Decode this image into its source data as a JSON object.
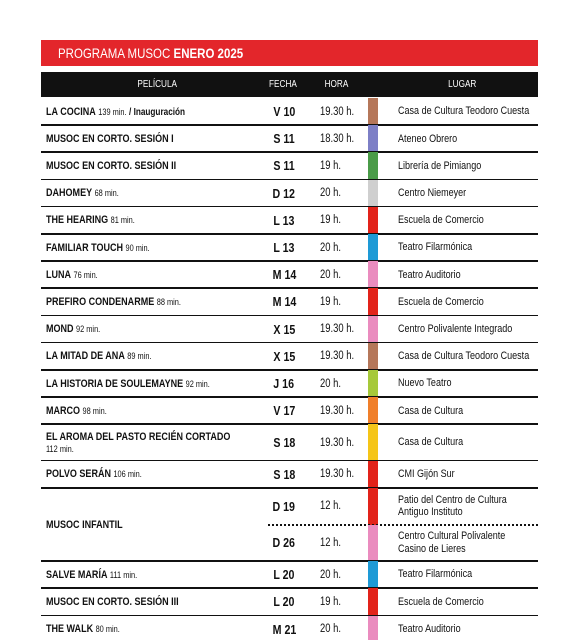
{
  "header": {
    "title": [
      "PROGRAMA MUSOC",
      "ENERO 2025"
    ]
  },
  "table": {
    "columns": [
      "PELÍCULA",
      "FECHA",
      "HORA",
      "LUGAR"
    ],
    "rows": [
      {
        "film": "LA COCINA",
        "duration": "139 min.",
        "note": "/ Inauguración",
        "sessions": [
          {
            "date": "V 10",
            "time": "19.30 h.",
            "color": "#b5775a",
            "place": [
              "Casa de Cultura Teodoro Cuesta"
            ]
          }
        ]
      },
      {
        "film": "MUSOC EN CORTO. SESIÓN I",
        "sessions": [
          {
            "date": "S 11",
            "time": "18.30 h.",
            "color": "#7d7fc6",
            "place": [
              "Ateneo Obrero"
            ]
          }
        ]
      },
      {
        "film": "MUSOC EN CORTO. SESIÓN II",
        "sessions": [
          {
            "date": "S 11",
            "time": "19 h.",
            "color": "#4a9b48",
            "place": [
              "Librería de Pimiango"
            ]
          }
        ]
      },
      {
        "film": "DAHOMEY",
        "duration": "68 min.",
        "sessions": [
          {
            "date": "D 12",
            "time": "20 h.",
            "color": "#cfcfcf",
            "place": [
              "Centro Niemeyer"
            ]
          }
        ]
      },
      {
        "film": "THE HEARING",
        "duration": "81 min.",
        "sessions": [
          {
            "date": "L 13",
            "time": "19 h.",
            "color": "#e2231a",
            "place": [
              "Escuela de Comercio"
            ]
          }
        ]
      },
      {
        "film": "FAMILIAR TOUCH",
        "duration": "90 min.",
        "sessions": [
          {
            "date": "L 13",
            "time": "20 h.",
            "color": "#1e9ad6",
            "place": [
              "Teatro Filarmónica"
            ]
          }
        ]
      },
      {
        "film": "LUNA",
        "duration": "76 min.",
        "sessions": [
          {
            "date": "M 14",
            "time": "20 h.",
            "color": "#ea8cbf",
            "place": [
              "Teatro Auditorio"
            ]
          }
        ]
      },
      {
        "film": "PREFIRO CONDENARME",
        "duration": "88 min.",
        "sessions": [
          {
            "date": "M 14",
            "time": "19 h.",
            "color": "#e2231a",
            "place": [
              "Escuela de Comercio"
            ]
          }
        ]
      },
      {
        "film": "MOND",
        "duration": "92 min.",
        "sessions": [
          {
            "date": "X 15",
            "time": "19.30 h.",
            "color": "#ea8cbf",
            "place": [
              "Centro Polivalente Integrado"
            ]
          }
        ]
      },
      {
        "film": "LA MITAD DE ANA",
        "duration": "89 min.",
        "sessions": [
          {
            "date": "X 15",
            "time": "19.30 h.",
            "color": "#b5775a",
            "place": [
              "Casa de Cultura Teodoro Cuesta"
            ]
          }
        ]
      },
      {
        "film": "LA HISTORIA DE SOULEMAYNE",
        "duration": "92 min.",
        "sessions": [
          {
            "date": "J 16",
            "time": "20 h.",
            "color": "#a6c93a",
            "place": [
              "Nuevo Teatro"
            ]
          }
        ]
      },
      {
        "film": "MARCO",
        "duration": "98 min.",
        "sessions": [
          {
            "date": "V 17",
            "time": "19.30 h.",
            "color": "#f07f2a",
            "place": [
              "Casa de Cultura"
            ]
          }
        ]
      },
      {
        "film": "EL AROMA DEL PASTO RECIÉN CORTADO",
        "duration": "112 min.",
        "sessions": [
          {
            "date": "S 18",
            "time": "19.30 h.",
            "color": "#f5c518",
            "place": [
              "Casa de Cultura"
            ]
          }
        ]
      },
      {
        "film": "POLVO SERÁN",
        "duration": "106 min.",
        "sessions": [
          {
            "date": "S 18",
            "time": "19.30 h.",
            "color": "#e2231a",
            "place": [
              "CMI Gijón Sur"
            ]
          }
        ]
      },
      {
        "film": "MUSOC INFANTIL",
        "sessions": [
          {
            "date": "D 19",
            "time": "12 h.",
            "color": "#e2231a",
            "place": [
              "Patio del Centro de Cultura",
              "Antiguo Instituto"
            ]
          },
          {
            "date": "D 26",
            "time": "12 h.",
            "color": "#ea8cbf",
            "place": [
              "Centro Cultural Polivalente",
              "Casino de Lieres"
            ]
          }
        ]
      },
      {
        "film": "SALVE MARÍA",
        "duration": "111 min.",
        "sessions": [
          {
            "date": "L 20",
            "time": "20 h.",
            "color": "#1e9ad6",
            "place": [
              "Teatro Filarmónica"
            ]
          }
        ]
      },
      {
        "film": "MUSOC EN CORTO. SESIÓN III",
        "sessions": [
          {
            "date": "L 20",
            "time": "19 h.",
            "color": "#e2231a",
            "place": [
              "Escuela de Comercio"
            ]
          }
        ]
      },
      {
        "film": "THE WALK",
        "duration": "80 min.",
        "sessions": [
          {
            "date": "M 21",
            "time": "20 h.",
            "color": "#ea8cbf",
            "place": [
              "Teatro Auditorio"
            ]
          }
        ]
      }
    ]
  }
}
